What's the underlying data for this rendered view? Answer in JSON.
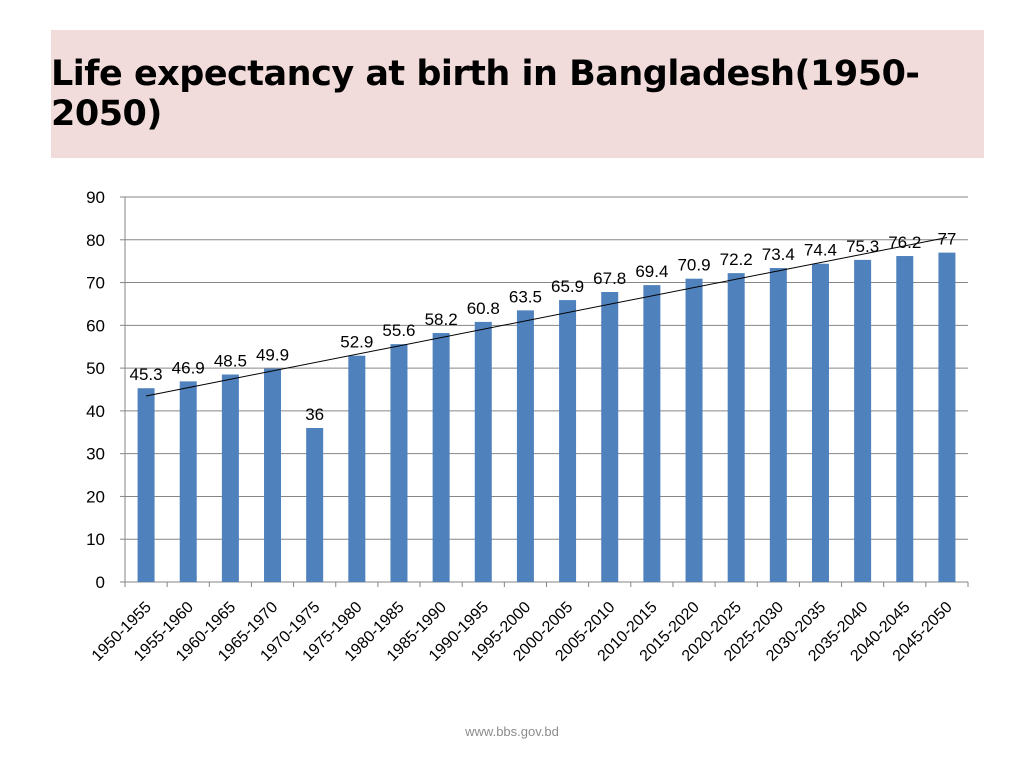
{
  "slide": {
    "title": "Life expectancy at birth in Bangladesh(1950-2050)",
    "footer": "www.bbs.gov.bd"
  },
  "colors": {
    "title_background": "#f2dcdb",
    "bar": "#4f81bd",
    "gridline": "#868686",
    "trendline": "#000000"
  },
  "chart_data": {
    "type": "bar",
    "title": "",
    "xlabel": "",
    "ylabel": "",
    "categories": [
      "1950-1955",
      "1955-1960",
      "1960-1965",
      "1965-1970",
      "1970-1975",
      "1975-1980",
      "1980-1985",
      "1985-1990",
      "1990-1995",
      "1995-2000",
      "2000-2005",
      "2005-2010",
      "2010-2015",
      "2015-2020",
      "2020-2025",
      "2025-2030",
      "2030-2035",
      "2035-2040",
      "2040-2045",
      "2045-2050"
    ],
    "values": [
      45.3,
      46.9,
      48.5,
      49.9,
      36,
      52.9,
      55.6,
      58.2,
      60.8,
      63.5,
      65.9,
      67.8,
      69.4,
      70.9,
      72.2,
      73.4,
      74.4,
      75.3,
      76.2,
      77
    ],
    "data_labels": [
      "45.3",
      "46.9",
      "48.5",
      "49.9",
      "36",
      "52.9",
      "55.6",
      "58.2",
      "60.8",
      "63.5",
      "65.9",
      "67.8",
      "69.4",
      "70.9",
      "72.2",
      "73.4",
      "74.4",
      "75.3",
      "76.2",
      "77"
    ],
    "ylim": [
      0,
      90
    ],
    "yticks": [
      0,
      10,
      20,
      30,
      40,
      50,
      60,
      70,
      80,
      90
    ],
    "grid": true,
    "legend": "none",
    "trendline": "linear"
  }
}
